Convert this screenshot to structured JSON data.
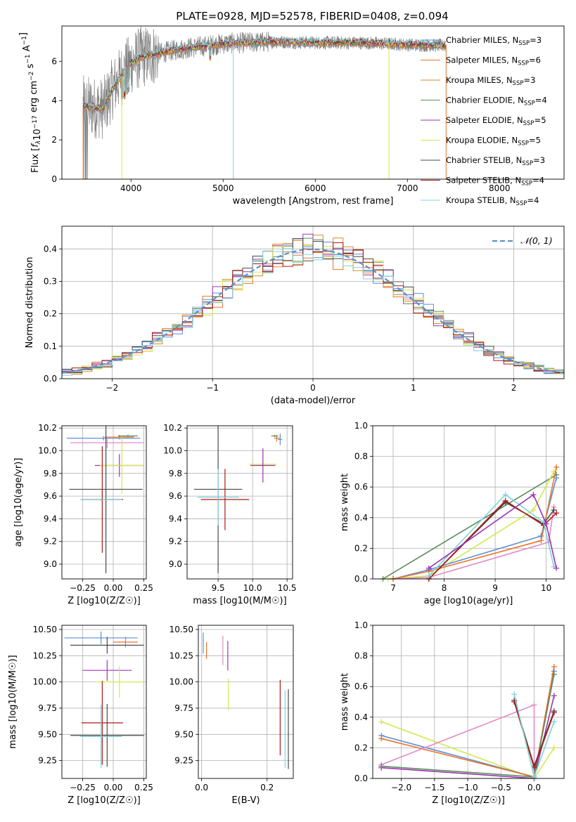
{
  "figure": {
    "title": "PLATE=0928, MJD=52578, FIBERID=0408, z=0.094"
  },
  "models": [
    {
      "label": "Chabrier MILES, N$_{SSP}$=3",
      "lib": "Chabrier MILES",
      "nssp": "3",
      "color": "#5b8ed6"
    },
    {
      "label": "Salpeter MILES, N$_{SSP}$=6",
      "lib": "Salpeter MILES",
      "nssp": "6",
      "color": "#e8752a"
    },
    {
      "label": "Kroupa MILES, N$_{SSP}$=3",
      "lib": "Kroupa MILES",
      "nssp": "3",
      "color": "#d98a2a"
    },
    {
      "label": "Chabrier ELODIE, N$_{SSP}$=4",
      "lib": "Chabrier ELODIE",
      "nssp": "4",
      "color": "#5c8a5c"
    },
    {
      "label": "Salpeter ELODIE, N$_{SSP}$=5",
      "lib": "Salpeter ELODIE",
      "nssp": "5",
      "color": "#9b35b0"
    },
    {
      "label": "Kroupa ELODIE, N$_{SSP}$=5",
      "lib": "Kroupa ELODIE",
      "nssp": "5",
      "color": "#d4e84a"
    },
    {
      "label": "Chabrier STELIB, N$_{SSP}$=3",
      "lib": "Chabrier STELIB",
      "nssp": "3",
      "color": "#4a4a4a"
    },
    {
      "label": "Salpeter STELIB, N$_{SSP}$=4",
      "lib": "Salpeter STELIB",
      "nssp": "4",
      "color": "#b01818"
    },
    {
      "label": "Kroupa STELIB, N$_{SSP}$=4",
      "lib": "Kroupa STELIB",
      "nssp": "4",
      "color": "#7fd4dc"
    }
  ],
  "chart_data": [
    {
      "id": "spectrum",
      "type": "line",
      "xlabel": "wavelength [Angstrom, rest frame]",
      "ylabel": "Flux [f_λ 10^-17 erg cm^-2 s^-1 A^-1]",
      "xlim": [
        3250,
        8700
      ],
      "ylim": [
        0,
        7.8
      ],
      "xticks": [
        4000,
        5000,
        6000,
        7000,
        8000
      ],
      "yticks": [
        0,
        2,
        4,
        6
      ],
      "grid": false,
      "legend": "right",
      "data_color": "#808080",
      "continuum": {
        "x": [
          3500,
          3700,
          3800,
          3900,
          4000,
          4100,
          4300,
          4500,
          5000,
          5500,
          6000,
          6500,
          7000,
          7400
        ],
        "y": [
          3.7,
          3.6,
          4.6,
          5.3,
          5.9,
          6.2,
          6.4,
          6.6,
          6.9,
          7.0,
          6.95,
          6.95,
          6.85,
          6.8
        ]
      }
    },
    {
      "id": "residuals",
      "type": "bar",
      "xlabel": "(data-model)/error",
      "ylabel": "Normed distribution",
      "xlim": [
        -2.5,
        2.5
      ],
      "ylim": [
        0,
        0.47
      ],
      "xticks": [
        -2,
        -1,
        0,
        1,
        2
      ],
      "yticks": [
        0.0,
        0.1,
        0.2,
        0.3,
        0.4
      ],
      "grid": true,
      "legend": "top-right",
      "gauss_label": "𝒩(0, 1)",
      "gauss_color": "#5b8ed6"
    },
    {
      "id": "age-vs-Z",
      "type": "scatter",
      "xlabel": "Z [log10(Z/Z☉)]",
      "ylabel": "age [log10(age/yr)]",
      "xlim": [
        -0.42,
        0.27
      ],
      "ylim": [
        8.87,
        10.22
      ],
      "xticks": [
        -0.25,
        0.0,
        0.25
      ],
      "xticklabels": [
        "−0.25",
        "0.00",
        "0.25"
      ],
      "yticks": [
        9.0,
        9.2,
        9.4,
        9.6,
        9.8,
        10.0,
        10.2
      ],
      "grid": true,
      "points": [
        {
          "x": -0.08,
          "y": 10.11,
          "xerr": 0.3,
          "yerr": 0.02,
          "color": "#5b8ed6"
        },
        {
          "x": 0.05,
          "y": 10.12,
          "xerr": 0.12,
          "yerr": 0.02,
          "color": "#e8752a"
        },
        {
          "x": 0.12,
          "y": 10.13,
          "xerr": 0.08,
          "yerr": 0.01,
          "color": "#5c8a5c"
        },
        {
          "x": -0.05,
          "y": 10.07,
          "xerr": 0.3,
          "yerr": 0.05,
          "color": "#e48bc5"
        },
        {
          "x": 0.05,
          "y": 9.87,
          "xerr": 0.2,
          "yerr": 0.1,
          "color": "#9b35b0"
        },
        {
          "x": 0.07,
          "y": 9.87,
          "xerr": 0.18,
          "yerr": 0.25,
          "color": "#d4e84a"
        },
        {
          "x": -0.06,
          "y": 9.66,
          "xerr": 0.3,
          "yerr": 0.74,
          "color": "#4a4a4a"
        },
        {
          "x": -0.09,
          "y": 9.57,
          "xerr": 0.17,
          "yerr": 0.47,
          "color": "#b01818"
        },
        {
          "x": -0.1,
          "y": 9.57,
          "xerr": 0.17,
          "yerr": 0.01,
          "color": "#7fd4dc"
        }
      ]
    },
    {
      "id": "age-vs-mass",
      "type": "scatter",
      "xlabel": "mass [log10(M/M☉)]",
      "xlim": [
        9.05,
        10.58
      ],
      "ylim": [
        8.87,
        10.22
      ],
      "xticks": [
        9.5,
        10.0,
        10.5
      ],
      "yticks": [
        9.0,
        9.2,
        9.4,
        9.6,
        9.8,
        10.0,
        10.2
      ],
      "grid": true,
      "points": [
        {
          "x": 10.4,
          "y": 10.1,
          "xerr": 0.03,
          "yerr": 0.05,
          "color": "#5b8ed6"
        },
        {
          "x": 10.35,
          "y": 10.11,
          "xerr": 0.04,
          "yerr": 0.03,
          "color": "#e8752a"
        },
        {
          "x": 10.32,
          "y": 10.13,
          "xerr": 0.05,
          "yerr": 0.01,
          "color": "#5c8a5c"
        },
        {
          "x": 10.15,
          "y": 9.88,
          "xerr": 0.2,
          "yerr": 0.03,
          "color": "#d4e84a"
        },
        {
          "x": 10.15,
          "y": 9.87,
          "xerr": 0.18,
          "yerr": 0.15,
          "color": "#9b35b0"
        },
        {
          "x": 9.5,
          "y": 9.66,
          "xerr": 0.35,
          "yerr": 0.74,
          "color": "#4a4a4a"
        },
        {
          "x": 9.6,
          "y": 9.57,
          "xerr": 0.35,
          "yerr": 0.27,
          "color": "#b01818"
        },
        {
          "x": 9.5,
          "y": 9.59,
          "xerr": 0.3,
          "yerr": 0.25,
          "color": "#7fd4dc"
        }
      ]
    },
    {
      "id": "weight-vs-age",
      "type": "line",
      "xlabel": "age [log10(age/yr)]",
      "ylabel": "mass weight",
      "xlim": [
        6.6,
        10.35
      ],
      "ylim": [
        0,
        1.0
      ],
      "xticks": [
        7,
        8,
        9,
        10
      ],
      "yticks": [
        0.0,
        0.2,
        0.4,
        0.6,
        0.8,
        1.0
      ],
      "grid": true,
      "series": [
        {
          "color": "#5c8a5c",
          "x": [
            6.8,
            10.2
          ],
          "y": [
            0.0,
            0.68
          ]
        },
        {
          "color": "#d4e84a",
          "x": [
            6.9,
            7.7,
            9.75,
            10.15
          ],
          "y": [
            0.0,
            0.02,
            0.45,
            0.7
          ]
        },
        {
          "color": "#e48bc5",
          "x": [
            7.0,
            7.7,
            10.05,
            10.15
          ],
          "y": [
            0.0,
            0.01,
            0.24,
            0.47
          ]
        },
        {
          "color": "#5b8ed6",
          "x": [
            7.0,
            7.7,
            9.9,
            10.2
          ],
          "y": [
            0.0,
            0.06,
            0.28,
            0.66
          ]
        },
        {
          "color": "#e8752a",
          "x": [
            7.0,
            7.7,
            9.9,
            10.2
          ],
          "y": [
            0.0,
            0.05,
            0.25,
            0.73
          ]
        },
        {
          "color": "#4a4a4a",
          "x": [
            7.7,
            9.2,
            9.95,
            10.15
          ],
          "y": [
            0.0,
            0.5,
            0.36,
            0.45
          ]
        },
        {
          "color": "#b01818",
          "x": [
            7.7,
            9.2,
            9.95,
            10.2
          ],
          "y": [
            0.0,
            0.51,
            0.35,
            0.43
          ]
        },
        {
          "color": "#7fd4dc",
          "x": [
            7.7,
            9.2,
            9.95,
            10.15
          ],
          "y": [
            0.02,
            0.55,
            0.37,
            0.08
          ]
        },
        {
          "color": "#9b35b0",
          "x": [
            7.7,
            9.75,
            10.0,
            10.2
          ],
          "y": [
            0.07,
            0.55,
            0.36,
            0.07
          ]
        }
      ]
    },
    {
      "id": "mass-vs-Z",
      "type": "scatter",
      "xlabel": "Z [log10(Z/Z☉)]",
      "ylabel": "mass [log10(M/M☉)]",
      "xlim": [
        -0.42,
        0.27
      ],
      "ylim": [
        9.08,
        10.54
      ],
      "xticks": [
        -0.25,
        0.0,
        0.25
      ],
      "xticklabels": [
        "−0.25",
        "0.00",
        "0.25"
      ],
      "yticks": [
        9.25,
        9.5,
        9.75,
        10.0,
        10.25,
        10.5
      ],
      "grid": true,
      "points": [
        {
          "x": -0.1,
          "y": 10.42,
          "xerr": 0.3,
          "yerr": 0.06,
          "color": "#5b8ed6"
        },
        {
          "x": 0.1,
          "y": 10.38,
          "xerr": 0.1,
          "yerr": 0.05,
          "color": "#e8752a"
        },
        {
          "x": -0.05,
          "y": 10.35,
          "xerr": 0.3,
          "yerr": 0.08,
          "color": "#4a4a4a"
        },
        {
          "x": -0.05,
          "y": 10.11,
          "xerr": 0.2,
          "yerr": 0.1,
          "color": "#9b35b0"
        },
        {
          "x": 0.05,
          "y": 10.0,
          "xerr": 0.2,
          "yerr": 0.15,
          "color": "#d4e84a"
        },
        {
          "x": -0.09,
          "y": 9.61,
          "xerr": 0.17,
          "yerr": 0.4,
          "color": "#b01818"
        },
        {
          "x": -0.05,
          "y": 9.49,
          "xerr": 0.3,
          "yerr": 0.3,
          "color": "#4a4a4a"
        },
        {
          "x": -0.1,
          "y": 9.48,
          "xerr": 0.17,
          "yerr": 0.3,
          "color": "#7fd4dc"
        }
      ]
    },
    {
      "id": "mass-vs-EBV",
      "type": "scatter",
      "xlabel": "E(B-V)",
      "xlim": [
        -0.01,
        0.28
      ],
      "ylim": [
        9.08,
        10.54
      ],
      "xticks": [
        0.0,
        0.2
      ],
      "xticklabels": [
        "0.0",
        "0.2"
      ],
      "yticks": [
        9.25,
        9.5,
        9.75,
        10.0,
        10.25,
        10.5
      ],
      "grid": true,
      "points": [
        {
          "x": 0.005,
          "y": 10.37,
          "yerr": 0.1,
          "color": "#5b8ed6"
        },
        {
          "x": 0.015,
          "y": 10.3,
          "yerr": 0.08,
          "color": "#e8752a"
        },
        {
          "x": 0.065,
          "y": 10.3,
          "yerr": 0.14,
          "color": "#e48bc5"
        },
        {
          "x": 0.08,
          "y": 10.25,
          "yerr": 0.14,
          "color": "#9b35b0"
        },
        {
          "x": 0.082,
          "y": 9.88,
          "yerr": 0.15,
          "color": "#d4e84a"
        },
        {
          "x": 0.24,
          "y": 9.66,
          "yerr": 0.36,
          "color": "#b01818"
        },
        {
          "x": 0.255,
          "y": 9.55,
          "yerr": 0.37,
          "color": "#7fd4dc"
        },
        {
          "x": 0.265,
          "y": 9.55,
          "yerr": 0.38,
          "color": "#4a4a4a"
        }
      ]
    },
    {
      "id": "weight-vs-Z",
      "type": "line",
      "xlabel": "Z [log10(Z/Z☉)]",
      "ylabel": "mass weight",
      "xlim": [
        -2.43,
        0.45
      ],
      "ylim": [
        0,
        1.0
      ],
      "xticks": [
        -2.0,
        -1.5,
        -1.0,
        -0.5,
        0.0
      ],
      "xticklabels": [
        "−2.0",
        "−1.5",
        "−1.0",
        "−0.5",
        "0.0"
      ],
      "yticks": [
        0.0,
        0.2,
        0.4,
        0.6,
        0.8,
        1.0
      ],
      "grid": true,
      "series": [
        {
          "color": "#d4e84a",
          "x": [
            -2.3,
            0.0,
            0.3
          ],
          "y": [
            0.37,
            0.0,
            0.2
          ]
        },
        {
          "color": "#5b8ed6",
          "x": [
            -2.3,
            0.0,
            0.3
          ],
          "y": [
            0.28,
            0.01,
            0.7
          ]
        },
        {
          "color": "#e8752a",
          "x": [
            -2.3,
            0.0,
            0.3
          ],
          "y": [
            0.26,
            0.01,
            0.73
          ]
        },
        {
          "color": "#e48bc5",
          "x": [
            -2.3,
            0.0,
            0.0
          ],
          "y": [
            0.09,
            0.48,
            0.01
          ]
        },
        {
          "color": "#9b35b0",
          "x": [
            -2.3,
            0.0,
            0.3
          ],
          "y": [
            0.07,
            0.0,
            0.54
          ]
        },
        {
          "color": "#5c8a5c",
          "x": [
            -2.3,
            0.0,
            0.3
          ],
          "y": [
            0.08,
            0.01,
            0.68
          ]
        },
        {
          "color": "#4a4a4a",
          "x": [
            -0.3,
            0.0,
            0.3
          ],
          "y": [
            0.51,
            0.08,
            0.44
          ]
        },
        {
          "color": "#b01818",
          "x": [
            -0.3,
            0.0,
            0.3
          ],
          "y": [
            0.5,
            0.07,
            0.43
          ]
        },
        {
          "color": "#7fd4dc",
          "x": [
            -0.3,
            0.0,
            0.3
          ],
          "y": [
            0.55,
            0.01,
            0.37
          ]
        }
      ]
    }
  ]
}
